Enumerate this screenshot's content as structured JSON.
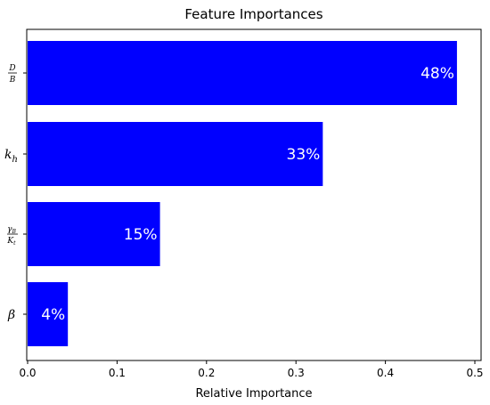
{
  "chart_data": {
    "type": "bar",
    "orientation": "horizontal",
    "title": "Feature Importances",
    "xlabel": "Relative Importance",
    "ylabel": "",
    "xlim": [
      0,
      0.5
    ],
    "xticks": [
      "0.0",
      "0.1",
      "0.2",
      "0.3",
      "0.4",
      "0.5"
    ],
    "xtick_values": [
      0.0,
      0.1,
      0.2,
      0.3,
      0.4,
      0.5
    ],
    "categories": [
      {
        "id": "D_over_B",
        "display": "D/B"
      },
      {
        "id": "k_h",
        "display": "k_h"
      },
      {
        "id": "gammaB_over_Kt",
        "display": "γ_B/K_t"
      },
      {
        "id": "beta",
        "display": "β"
      }
    ],
    "values": [
      0.48,
      0.33,
      0.148,
      0.045
    ],
    "data_labels": [
      "48%",
      "33%",
      "15%",
      "4%"
    ],
    "bar_color": "#0000ff",
    "grid": false,
    "legend": null
  }
}
